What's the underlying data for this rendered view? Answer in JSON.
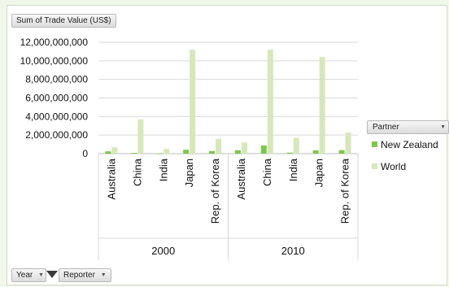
{
  "value_field": "Sum of Trade Value (US$)",
  "legend": {
    "title": "Partner",
    "items": [
      {
        "label": "New Zealand",
        "color": "#7cc84a"
      },
      {
        "label": "World",
        "color": "#d6e8b9"
      }
    ]
  },
  "filters": {
    "year_label": "Year",
    "reporter_label": "Reporter"
  },
  "chart_data": {
    "type": "bar",
    "ylim": [
      0,
      12000000000
    ],
    "yticks": [
      "0",
      "2,000,000,000",
      "4,000,000,000",
      "6,000,000,000",
      "8,000,000,000",
      "10,000,000,000",
      "12,000,000,000"
    ],
    "grid": true,
    "groups": [
      "2000",
      "2010"
    ],
    "categories": [
      "Australia",
      "China",
      "India",
      "Japan",
      "Rep. of Korea",
      "Australia",
      "China",
      "India",
      "Japan",
      "Rep. of Korea"
    ],
    "series": [
      {
        "name": "New Zealand",
        "color": "#7cc84a",
        "values": [
          250000000,
          80000000,
          20000000,
          430000000,
          280000000,
          370000000,
          880000000,
          110000000,
          360000000,
          380000000
        ]
      },
      {
        "name": "World",
        "color": "#d6e8b9",
        "values": [
          680000000,
          3700000000,
          500000000,
          11200000000,
          1600000000,
          1200000000,
          11200000000,
          1700000000,
          10400000000,
          2300000000
        ]
      }
    ]
  }
}
